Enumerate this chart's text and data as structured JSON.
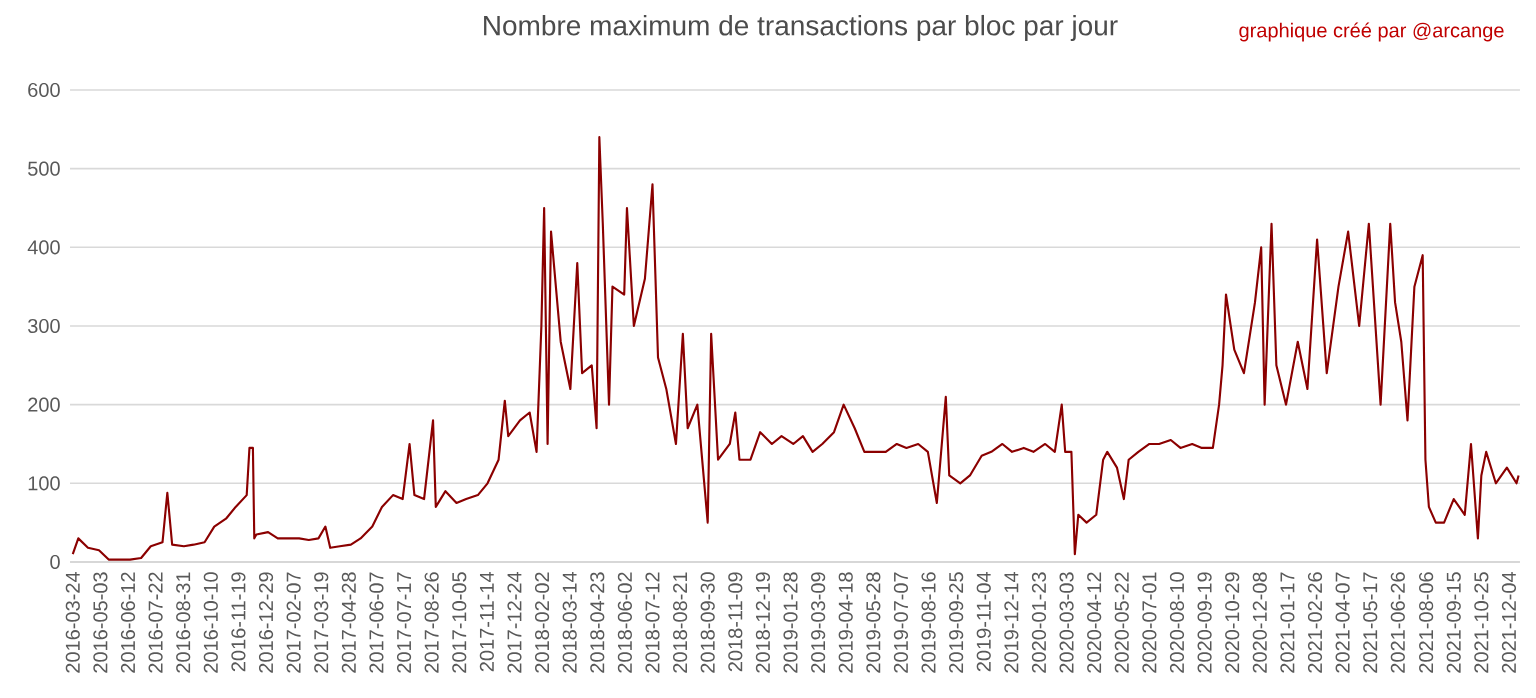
{
  "chart_data": {
    "type": "line",
    "title": "Nombre maximum de transactions par bloc par jour",
    "annotations": [
      "graphique créé par @arcange"
    ],
    "x": [
      "2016-03-24",
      "2016-04-01",
      "2016-04-15",
      "2016-05-01",
      "2016-05-15",
      "2016-06-01",
      "2016-06-15",
      "2016-07-01",
      "2016-07-15",
      "2016-08-01",
      "2016-08-08",
      "2016-08-15",
      "2016-09-01",
      "2016-09-15",
      "2016-10-01",
      "2016-10-15",
      "2016-11-01",
      "2016-11-15",
      "2016-12-01",
      "2016-12-05",
      "2016-12-10",
      "2016-12-12",
      "2016-12-15",
      "2017-01-01",
      "2017-01-15",
      "2017-02-01",
      "2017-02-15",
      "2017-03-01",
      "2017-03-15",
      "2017-03-25",
      "2017-04-01",
      "2017-04-15",
      "2017-05-01",
      "2017-05-15",
      "2017-06-01",
      "2017-06-15",
      "2017-07-01",
      "2017-07-15",
      "2017-07-25",
      "2017-08-01",
      "2017-08-15",
      "2017-08-28",
      "2017-09-01",
      "2017-09-15",
      "2017-10-01",
      "2017-10-15",
      "2017-11-01",
      "2017-11-15",
      "2017-12-01",
      "2017-12-10",
      "2017-12-15",
      "2018-01-01",
      "2018-01-15",
      "2018-01-25",
      "2018-02-01",
      "2018-02-05",
      "2018-02-10",
      "2018-02-15",
      "2018-03-01",
      "2018-03-15",
      "2018-03-25",
      "2018-04-01",
      "2018-04-15",
      "2018-04-22",
      "2018-04-26",
      "2018-05-01",
      "2018-05-10",
      "2018-05-15",
      "2018-06-01",
      "2018-06-05",
      "2018-06-15",
      "2018-07-01",
      "2018-07-12",
      "2018-07-20",
      "2018-08-01",
      "2018-08-15",
      "2018-08-25",
      "2018-09-01",
      "2018-09-15",
      "2018-09-30",
      "2018-10-05",
      "2018-10-15",
      "2018-11-01",
      "2018-11-09",
      "2018-11-15",
      "2018-12-01",
      "2018-12-15",
      "2019-01-01",
      "2019-01-15",
      "2019-02-01",
      "2019-02-15",
      "2019-03-01",
      "2019-03-15",
      "2019-04-01",
      "2019-04-15",
      "2019-05-01",
      "2019-05-15",
      "2019-06-01",
      "2019-06-15",
      "2019-07-01",
      "2019-07-15",
      "2019-08-01",
      "2019-08-15",
      "2019-08-28",
      "2019-09-10",
      "2019-09-15",
      "2019-10-01",
      "2019-10-15",
      "2019-11-01",
      "2019-11-15",
      "2019-12-01",
      "2019-12-15",
      "2020-01-01",
      "2020-01-15",
      "2020-02-01",
      "2020-02-15",
      "2020-02-25",
      "2020-03-01",
      "2020-03-10",
      "2020-03-15",
      "2020-03-20",
      "2020-04-01",
      "2020-04-15",
      "2020-04-25",
      "2020-05-01",
      "2020-05-15",
      "2020-05-25",
      "2020-06-01",
      "2020-06-15",
      "2020-07-01",
      "2020-07-15",
      "2020-08-01",
      "2020-08-15",
      "2020-09-01",
      "2020-09-15",
      "2020-10-01",
      "2020-10-10",
      "2020-10-15",
      "2020-10-20",
      "2020-11-01",
      "2020-11-15",
      "2020-12-01",
      "2020-12-10",
      "2020-12-15",
      "2020-12-25",
      "2021-01-01",
      "2021-01-15",
      "2021-02-01",
      "2021-02-15",
      "2021-03-01",
      "2021-03-15",
      "2021-04-01",
      "2021-04-15",
      "2021-05-01",
      "2021-05-15",
      "2021-06-01",
      "2021-06-15",
      "2021-06-22",
      "2021-07-01",
      "2021-07-10",
      "2021-07-20",
      "2021-08-01",
      "2021-08-05",
      "2021-08-10",
      "2021-08-20",
      "2021-09-01",
      "2021-09-15",
      "2021-10-01",
      "2021-10-10",
      "2021-10-20",
      "2021-10-25",
      "2021-11-01",
      "2021-11-15",
      "2021-12-01",
      "2021-12-15",
      "2021-12-18"
    ],
    "series": [
      {
        "color": "#8b0000",
        "values": [
          10,
          30,
          18,
          15,
          3,
          3,
          3,
          5,
          20,
          25,
          88,
          22,
          20,
          22,
          25,
          45,
          55,
          70,
          85,
          145,
          145,
          30,
          35,
          38,
          30,
          30,
          30,
          28,
          30,
          45,
          18,
          20,
          22,
          30,
          45,
          70,
          85,
          80,
          150,
          85,
          80,
          180,
          70,
          90,
          75,
          80,
          85,
          100,
          130,
          205,
          160,
          180,
          190,
          140,
          300,
          450,
          150,
          420,
          280,
          220,
          380,
          240,
          250,
          170,
          540,
          430,
          200,
          350,
          340,
          450,
          300,
          360,
          480,
          260,
          220,
          150,
          290,
          170,
          200,
          50,
          290,
          130,
          150,
          190,
          130,
          130,
          165,
          150,
          160,
          150,
          160,
          140,
          150,
          165,
          200,
          170,
          140,
          140,
          140,
          150,
          145,
          150,
          140,
          75,
          210,
          110,
          100,
          110,
          135,
          140,
          150,
          140,
          145,
          140,
          150,
          140,
          200,
          140,
          140,
          10,
          60,
          50,
          60,
          130,
          140,
          120,
          80,
          130,
          140,
          150,
          150,
          155,
          145,
          150,
          145,
          145,
          200,
          250,
          340,
          270,
          240,
          330,
          400,
          200,
          430,
          250,
          200,
          280,
          220,
          410,
          240,
          350,
          420,
          300,
          430,
          200,
          430,
          330,
          280,
          180,
          350,
          390,
          130,
          70,
          50,
          50,
          80,
          60,
          150,
          30,
          110,
          140,
          100,
          120,
          100,
          110
        ]
      }
    ],
    "xlim": [
      "2016-03-20",
      "2021-12-20"
    ],
    "xticks": [
      "2016-03-24",
      "2016-05-03",
      "2016-06-12",
      "2016-07-22",
      "2016-08-31",
      "2016-10-10",
      "2016-11-19",
      "2016-12-29",
      "2017-02-07",
      "2017-03-19",
      "2017-04-28",
      "2017-06-07",
      "2017-07-17",
      "2017-08-26",
      "2017-10-05",
      "2017-11-14",
      "2017-12-24",
      "2018-02-02",
      "2018-03-14",
      "2018-04-23",
      "2018-06-02",
      "2018-07-12",
      "2018-08-21",
      "2018-09-30",
      "2018-11-09",
      "2018-12-19",
      "2019-01-28",
      "2019-03-09",
      "2019-04-18",
      "2019-05-28",
      "2019-07-07",
      "2019-08-16",
      "2019-09-25",
      "2019-11-04",
      "2019-12-14",
      "2020-01-23",
      "2020-03-03",
      "2020-04-12",
      "2020-05-22",
      "2020-07-01",
      "2020-08-10",
      "2020-09-19",
      "2020-10-29",
      "2020-12-08",
      "2021-01-17",
      "2021-02-26",
      "2021-04-07",
      "2021-05-17",
      "2021-06-26",
      "2021-08-06",
      "2021-09-15",
      "2021-10-25",
      "2021-12-04"
    ],
    "ylim": [
      0,
      600
    ],
    "yticks": [
      0,
      100,
      200,
      300,
      400,
      500,
      600
    ],
    "grid": "y",
    "marker": "none",
    "line_style": "solid"
  }
}
